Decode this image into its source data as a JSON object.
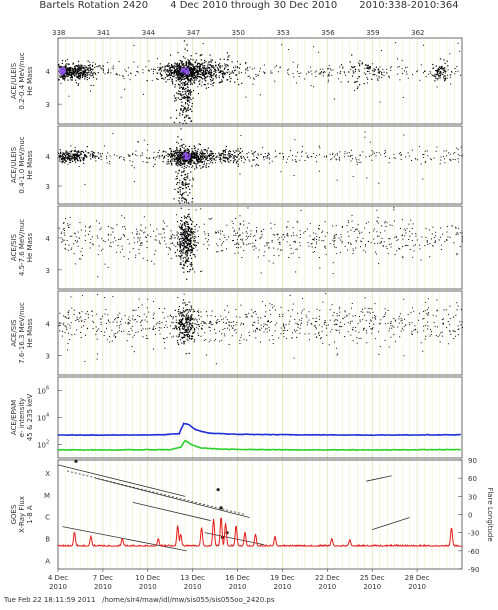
{
  "header": {
    "rotation_label": "Bartels Rotation 2420",
    "date_range": "4 Dec 2010 through 30 Dec 2010",
    "doy_range": "2010:338-2010:364"
  },
  "footer": {
    "timestamp": "Tue Feb 22 18:11:59 2011",
    "path": "/home/sir4/maw/idl/mw/sis055/sis055oo_2420.ps"
  },
  "chart_data": {
    "type": "scatter",
    "x_range_days": [
      4,
      31
    ],
    "top_doy_ticks": [
      "338",
      "341",
      "344",
      "347",
      "350",
      "353",
      "356",
      "359",
      "362"
    ],
    "bottom_ticks": [
      {
        "label": "4 Dec",
        "year": "2010",
        "day": 4
      },
      {
        "label": "7 Dec",
        "year": "2010",
        "day": 7
      },
      {
        "label": "10 Dec",
        "year": "2010",
        "day": 10
      },
      {
        "label": "13 Dec",
        "year": "2010",
        "day": 13
      },
      {
        "label": "16 Dec",
        "year": "2010",
        "day": 16
      },
      {
        "label": "19 Dec",
        "year": "2010",
        "day": 19
      },
      {
        "label": "22 Dec",
        "year": "2010",
        "day": 22
      },
      {
        "label": "25 Dec",
        "year": "2010",
        "day": 25
      },
      {
        "label": "28 Dec",
        "year": "2010",
        "day": 28
      }
    ],
    "panels": [
      {
        "id": "uleis-low",
        "ylabel_lines": [
          "ACE/ULEIS",
          "0.2-0.4 MeV/nuc",
          "He Mass"
        ],
        "y_ticks": [
          "4",
          "3"
        ],
        "colors": {
          "points": "#000000",
          "core": "#9b59ff"
        },
        "clusters": [
          {
            "day": 4.3,
            "mass": 4.0,
            "count": 260,
            "sx": 0.6,
            "sy": 0.12,
            "core": true
          },
          {
            "day": 5.5,
            "mass": 4.0,
            "count": 160,
            "sx": 0.5,
            "sy": 0.15,
            "core": false
          },
          {
            "day": 12.5,
            "mass": 4.0,
            "count": 520,
            "sx": 0.8,
            "sy": 0.15,
            "core": true
          },
          {
            "day": 12.4,
            "mass": 3.3,
            "count": 200,
            "sx": 0.3,
            "sy": 0.6,
            "core": false
          },
          {
            "day": 14.5,
            "mass": 4.0,
            "count": 160,
            "sx": 0.8,
            "sy": 0.2,
            "core": false
          },
          {
            "day": 24.5,
            "mass": 4.0,
            "count": 50,
            "sx": 0.6,
            "sy": 0.2,
            "core": false
          },
          {
            "day": 29.5,
            "mass": 4.0,
            "count": 60,
            "sx": 0.3,
            "sy": 0.15,
            "core": false
          }
        ],
        "background_count": 420
      },
      {
        "id": "uleis-high",
        "ylabel_lines": [
          "ACE/ULEIS",
          "0.4-1.0 MeV/nuc",
          "He Mass"
        ],
        "y_ticks": [
          "4",
          "3"
        ],
        "colors": {
          "points": "#000000",
          "core": "#9b59ff"
        },
        "clusters": [
          {
            "day": 4.8,
            "mass": 4.0,
            "count": 220,
            "sx": 0.8,
            "sy": 0.1,
            "core": false
          },
          {
            "day": 12.6,
            "mass": 4.0,
            "count": 420,
            "sx": 0.7,
            "sy": 0.15,
            "core": true
          },
          {
            "day": 12.4,
            "mass": 3.2,
            "count": 150,
            "sx": 0.3,
            "sy": 0.6,
            "core": false
          },
          {
            "day": 15.0,
            "mass": 4.0,
            "count": 120,
            "sx": 1.0,
            "sy": 0.15,
            "core": false
          }
        ],
        "background_count": 380
      },
      {
        "id": "sis-low",
        "ylabel_lines": [
          "ACE/SIS",
          "4.5-7.6 MeV/nuc",
          "He Mass"
        ],
        "y_ticks": [
          "4",
          "3"
        ],
        "colors": {
          "points": "#000000"
        },
        "clusters": [
          {
            "day": 12.5,
            "mass": 3.9,
            "count": 320,
            "sx": 0.3,
            "sy": 0.4,
            "core": false
          }
        ],
        "background_count": 700
      },
      {
        "id": "sis-high",
        "ylabel_lines": [
          "ACE/SIS",
          "7.6-16.3 MeV/nuc",
          "He Mass"
        ],
        "y_ticks": [
          "4",
          "3"
        ],
        "colors": {
          "points": "#000000"
        },
        "clusters": [
          {
            "day": 12.5,
            "mass": 4.0,
            "count": 200,
            "sx": 0.35,
            "sy": 0.3,
            "core": false
          }
        ],
        "background_count": 800
      }
    ],
    "epam": {
      "ylabel_lines": [
        "ACE/EPAM",
        "e- intensity",
        "45 & 235 keV"
      ],
      "y_ticks": [
        {
          "label": "10",
          "exp": "6"
        },
        {
          "label": "10",
          "exp": "4"
        },
        {
          "label": "10",
          "exp": "2"
        }
      ],
      "ylim_log10": [
        1,
        7
      ],
      "series": [
        {
          "color": "#1f2fd6",
          "points": [
            [
              4,
              2.7
            ],
            [
              8,
              2.7
            ],
            [
              11,
              2.72
            ],
            [
              12.1,
              2.8
            ],
            [
              12.4,
              3.55
            ],
            [
              12.7,
              3.5
            ],
            [
              13.2,
              3.1
            ],
            [
              14,
              2.85
            ],
            [
              16,
              2.75
            ],
            [
              20,
              2.72
            ],
            [
              25,
              2.7
            ],
            [
              31,
              2.72
            ]
          ]
        },
        {
          "color": "#2ad02a",
          "points": [
            [
              4,
              1.6
            ],
            [
              8,
              1.6
            ],
            [
              11.5,
              1.62
            ],
            [
              12.2,
              1.8
            ],
            [
              12.5,
              2.3
            ],
            [
              12.9,
              2.0
            ],
            [
              13.5,
              1.75
            ],
            [
              15,
              1.65
            ],
            [
              20,
              1.6
            ],
            [
              25,
              1.6
            ],
            [
              31,
              1.62
            ]
          ]
        }
      ]
    },
    "goes": {
      "ylabel_lines": [
        "GOES",
        "X-Ray Flux",
        "1-8 A"
      ],
      "class_ticks": [
        "X",
        "M",
        "C",
        "B",
        "A"
      ],
      "right_label": "Flare Longitude",
      "right_ticks": [
        "90",
        "60",
        "30",
        "0",
        "-30",
        "-60",
        "-90"
      ],
      "flux_color": "#e41a1a",
      "flux_baseline": 1.65,
      "flux_spikes": [
        {
          "day": 5.1,
          "level": 2.3
        },
        {
          "day": 6.2,
          "level": 2.1
        },
        {
          "day": 8.3,
          "level": 2.0
        },
        {
          "day": 10.7,
          "level": 2.0
        },
        {
          "day": 12.0,
          "level": 2.6
        },
        {
          "day": 12.2,
          "level": 2.2
        },
        {
          "day": 13.6,
          "level": 2.5
        },
        {
          "day": 14.4,
          "level": 2.9
        },
        {
          "day": 14.9,
          "level": 3.0
        },
        {
          "day": 15.2,
          "level": 2.7
        },
        {
          "day": 15.9,
          "level": 2.6
        },
        {
          "day": 16.5,
          "level": 2.3
        },
        {
          "day": 17.2,
          "level": 2.2
        },
        {
          "day": 18.5,
          "level": 2.1
        },
        {
          "day": 22.3,
          "level": 2.0
        },
        {
          "day": 23.5,
          "level": 1.95
        },
        {
          "day": 30.3,
          "level": 2.5
        }
      ],
      "longitude_tracks": [
        {
          "style": "solid",
          "points": [
            [
              4.0,
              82
            ],
            [
              12.5,
              30
            ]
          ]
        },
        {
          "style": "dotted",
          "points": [
            [
              4.6,
              72
            ],
            [
              16.5,
              0
            ]
          ]
        },
        {
          "style": "solid",
          "points": [
            [
              6.5,
              60
            ],
            [
              16.8,
              -5
            ]
          ]
        },
        {
          "style": "solid",
          "points": [
            [
              4.3,
              -20
            ],
            [
              12.6,
              -60
            ]
          ]
        },
        {
          "style": "solid",
          "points": [
            [
              9.0,
              20
            ],
            [
              14.2,
              -10
            ]
          ]
        },
        {
          "style": "solid",
          "points": [
            [
              13.8,
              -30
            ],
            [
              17.8,
              -50
            ]
          ]
        },
        {
          "style": "solid",
          "points": [
            [
              24.6,
              55
            ],
            [
              26.3,
              64
            ]
          ]
        },
        {
          "style": "solid",
          "points": [
            [
              25.0,
              -25
            ],
            [
              27.5,
              -5
            ]
          ]
        }
      ],
      "flare_markers": [
        {
          "day": 5.2,
          "lon": 88
        },
        {
          "day": 14.7,
          "lon": 41
        },
        {
          "day": 15.0,
          "lon": -38
        },
        {
          "day": 14.9,
          "lon": 11
        },
        {
          "day": 15.3,
          "lon": -30
        }
      ]
    }
  }
}
